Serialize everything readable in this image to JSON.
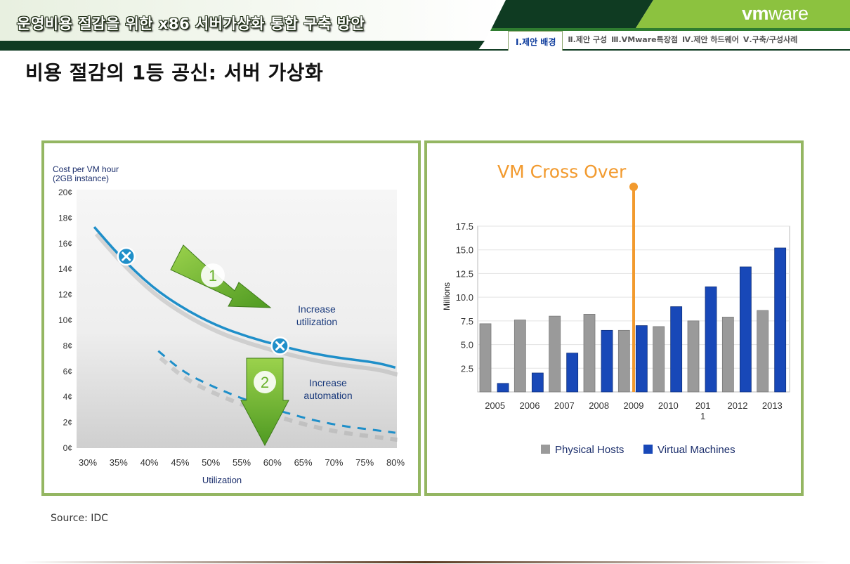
{
  "header": {
    "title": "운영비용 절감을 위한 x86 서버가상화 통합 구축 방안",
    "logo_prefix": "vm",
    "logo_suffix": "ware",
    "nav_tabs": [
      {
        "label": "Ⅰ.제안 배경",
        "active": true
      },
      {
        "label": "Ⅱ.제안 구성",
        "active": false
      },
      {
        "label": "Ⅲ.VMware특장점",
        "active": false
      },
      {
        "label": "Ⅳ.제안 하드웨어",
        "active": false
      },
      {
        "label": "Ⅴ.구축/구성사례",
        "active": false
      }
    ],
    "colors": {
      "dark_green": "#0f3b22",
      "mid_green": "#2f7d30",
      "light_green": "#8cc23f",
      "nav_blue": "#0b3a9c"
    }
  },
  "page_title": "비용 절감의 1등 공신: 서버 가상화",
  "source": "Source: IDC",
  "chart_data": [
    {
      "type": "line",
      "ylabel_line1": "Cost per VM hour",
      "ylabel_line2": "(2GB instance)",
      "xlabel": "Utilization",
      "x_ticks": [
        "30%",
        "35%",
        "40%",
        "45%",
        "50%",
        "55%",
        "60%",
        "65%",
        "70%",
        "75%",
        "80%"
      ],
      "y_ticks": [
        "0¢",
        "2¢",
        "4¢",
        "6¢",
        "8¢",
        "10¢",
        "12¢",
        "14¢",
        "16¢",
        "18¢",
        "20¢"
      ],
      "xlim": [
        30,
        80
      ],
      "ylim": [
        0,
        20
      ],
      "series": [
        {
          "style": "solid",
          "color": "#1f8fc9",
          "x": [
            31,
            35,
            40,
            45,
            50,
            55,
            60,
            65,
            70,
            75,
            78
          ],
          "y": [
            17.3,
            15.0,
            12.6,
            10.9,
            9.6,
            8.7,
            8.0,
            7.4,
            7.0,
            6.7,
            6.3
          ]
        },
        {
          "style": "dashed",
          "color": "#1f8fc9",
          "x": [
            41,
            45,
            50,
            55,
            60,
            65,
            70,
            75,
            78
          ],
          "y": [
            7.6,
            5.9,
            4.7,
            3.7,
            2.9,
            2.2,
            1.7,
            1.4,
            1.2
          ]
        }
      ],
      "markers": [
        {
          "x": 36,
          "y": 15
        },
        {
          "x": 60,
          "y": 8
        }
      ],
      "annotations": [
        {
          "number": "1",
          "line1": "Increase",
          "line2": "utilization"
        },
        {
          "number": "2",
          "line1": "Increase",
          "line2": "automation"
        }
      ],
      "colors": {
        "arrow": "#6ab22e",
        "curve": "#1f8fc9",
        "marker": "#1f8fc9"
      }
    },
    {
      "type": "bar",
      "title": "VM Cross Over",
      "ylabel": "Millions",
      "categories": [
        "2005",
        "2006",
        "2007",
        "2008",
        "2009",
        "2010",
        "201\n1",
        "2012",
        "2013"
      ],
      "y_ticks": [
        "2.5",
        "5.0",
        "7.5",
        "10.0",
        "12.5",
        "15.0",
        "17.5"
      ],
      "ylim": [
        0,
        17.5
      ],
      "series": [
        {
          "name": "Physical Hosts",
          "color": "#9a9a9a",
          "values": [
            7.2,
            7.6,
            8.0,
            8.2,
            6.5,
            6.9,
            7.5,
            7.9,
            8.6
          ]
        },
        {
          "name": "Virtual Machines",
          "color": "#1848b8",
          "values": [
            0.9,
            2.0,
            4.1,
            6.5,
            7.0,
            9.0,
            11.1,
            13.2,
            15.2
          ]
        }
      ],
      "crossover_category": "2009",
      "colors": {
        "crossover": "#f29a2e"
      }
    }
  ]
}
